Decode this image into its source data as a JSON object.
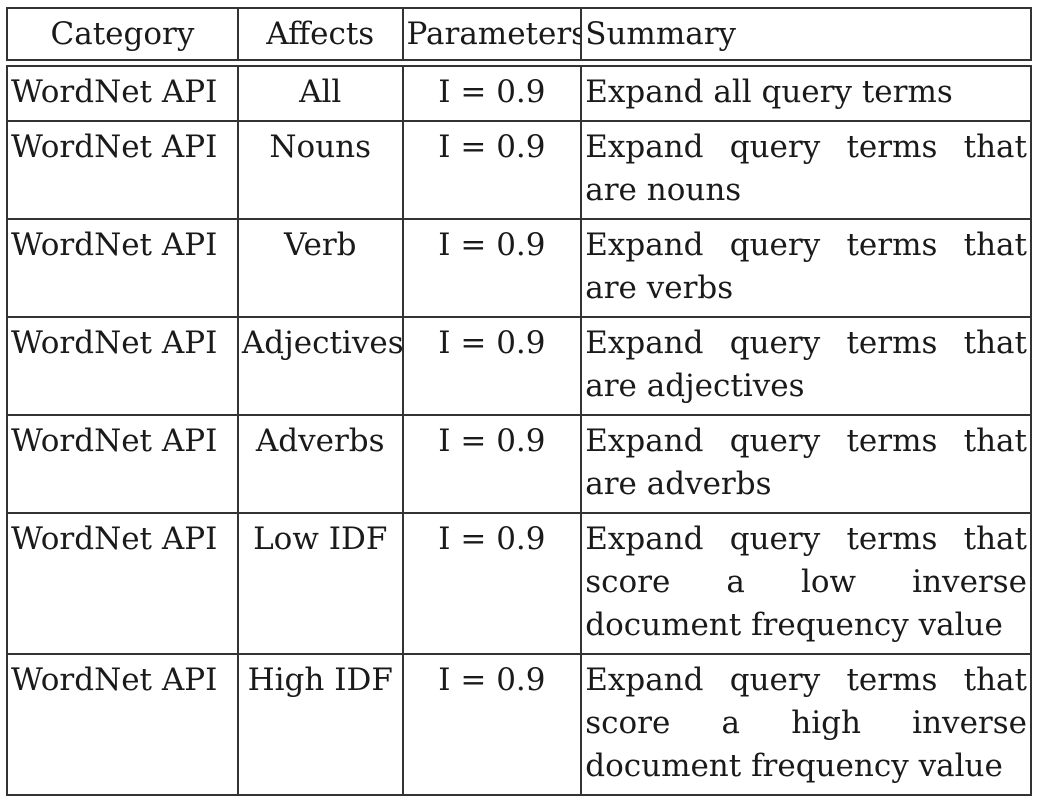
{
  "table": {
    "headers": [
      "Category",
      "Affects",
      "Parameters",
      "Summary"
    ],
    "rows": [
      {
        "category": "WordNet API",
        "affects": "All",
        "parameters": "I = 0.9",
        "summary": "Expand all query terms"
      },
      {
        "category": "WordNet API",
        "affects": "Nouns",
        "parameters": "I = 0.9",
        "summary": "Expand query terms that are nouns"
      },
      {
        "category": "WordNet API",
        "affects": "Verb",
        "parameters": "I = 0.9",
        "summary": "Expand query terms that are verbs"
      },
      {
        "category": "WordNet API",
        "affects": "Adjectives",
        "parameters": "I = 0.9",
        "summary": "Expand query terms that are adjectives"
      },
      {
        "category": "WordNet API",
        "affects": "Adverbs",
        "parameters": "I = 0.9",
        "summary": "Expand query terms that are adverbs"
      },
      {
        "category": "WordNet API",
        "affects": "Low IDF",
        "parameters": "I = 0.9",
        "summary": "Expand query terms that score a low inverse document frequency value"
      },
      {
        "category": "WordNet API",
        "affects": "High IDF",
        "parameters": "I = 0.9",
        "summary": "Expand query terms that score a high inverse document frequency value"
      }
    ]
  }
}
